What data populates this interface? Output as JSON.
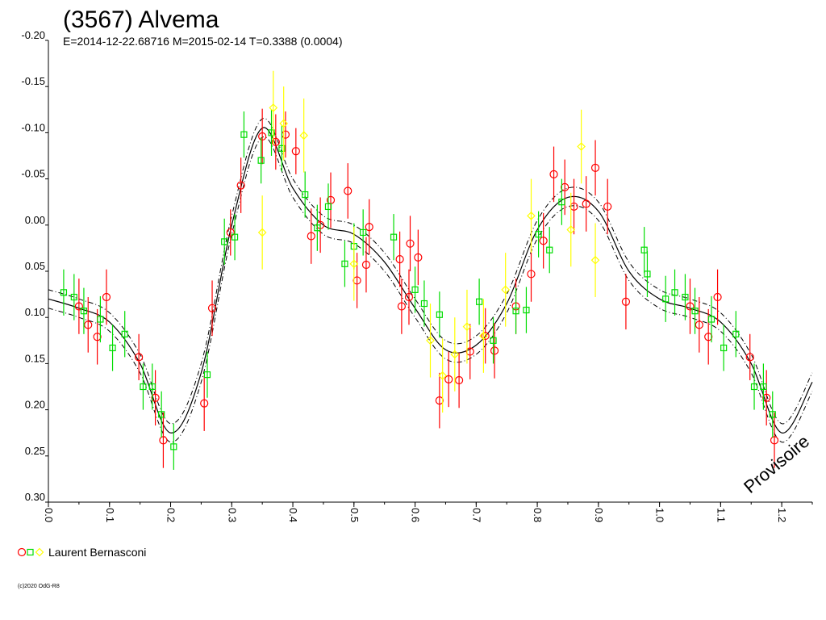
{
  "chart_data": {
    "type": "scatter",
    "title": "(3567) Alvema",
    "subtitle": "E=2014-12-22.68716    M=2015-02-14    T=0.3388 (0.0004)",
    "xlabel": "",
    "ylabel": "",
    "xlim": [
      0.0,
      1.25
    ],
    "ylim": [
      0.3,
      -0.2
    ],
    "y_inverted": true,
    "x_ticks": [
      "0.0",
      "0.1",
      "0.2",
      "0.3",
      "0.4",
      "0.5",
      "0.6",
      "0.7",
      "0.8",
      "0.9",
      "1.0",
      "1.1",
      "1.2"
    ],
    "y_ticks": [
      "-0.20",
      "-0.15",
      "-0.10",
      "-0.05",
      "0.00",
      "0.05",
      "0.10",
      "0.15",
      "0.20",
      "0.25",
      "0.30"
    ],
    "grid": false,
    "legend": {
      "placement": "bottom-left",
      "label": "Laurent Bernasconi",
      "marker_colors": [
        "#ff0000",
        "#00dd00",
        "#ffff00"
      ]
    },
    "watermark": "Provisoire",
    "copyright": "(c)2020 OdG-R8",
    "fit_curve": {
      "x": [
        0.0,
        0.05,
        0.1,
        0.15,
        0.2,
        0.25,
        0.3,
        0.35,
        0.4,
        0.45,
        0.5,
        0.55,
        0.6,
        0.65,
        0.7,
        0.75,
        0.8,
        0.85,
        0.9,
        0.95,
        1.0,
        1.05,
        1.1,
        1.15,
        1.2,
        1.25
      ],
      "y": [
        0.08,
        0.09,
        0.105,
        0.15,
        0.225,
        0.16,
        0.0,
        -0.105,
        -0.04,
        0.0,
        0.01,
        0.04,
        0.09,
        0.135,
        0.13,
        0.085,
        0.005,
        -0.03,
        -0.015,
        0.05,
        0.08,
        0.09,
        0.105,
        0.15,
        0.225,
        0.17
      ],
      "band": 0.01
    },
    "series": [
      {
        "name": "Laurent Bernasconi (red)",
        "marker": "circle",
        "color": "#ff0000",
        "points": [
          [
            0.05,
            0.088,
            0.03
          ],
          [
            0.065,
            0.108,
            0.03
          ],
          [
            0.08,
            0.121,
            0.03
          ],
          [
            0.095,
            0.078,
            0.03
          ],
          [
            0.148,
            0.143,
            0.025
          ],
          [
            0.175,
            0.187,
            0.03
          ],
          [
            0.188,
            0.233,
            0.03
          ],
          [
            0.255,
            0.193,
            0.03
          ],
          [
            0.268,
            0.09,
            0.03
          ],
          [
            0.298,
            0.008,
            0.025
          ],
          [
            0.315,
            -0.043,
            0.03
          ],
          [
            0.35,
            -0.096,
            0.03
          ],
          [
            0.372,
            -0.09,
            0.03
          ],
          [
            0.388,
            -0.098,
            0.025
          ],
          [
            0.405,
            -0.08,
            0.025
          ],
          [
            0.43,
            0.012,
            0.03
          ],
          [
            0.445,
            0.0,
            0.03
          ],
          [
            0.462,
            -0.027,
            0.03
          ],
          [
            0.49,
            -0.037,
            0.03
          ],
          [
            0.505,
            0.06,
            0.03
          ],
          [
            0.52,
            0.043,
            0.03
          ],
          [
            0.525,
            0.002,
            0.03
          ],
          [
            0.575,
            0.037,
            0.03
          ],
          [
            0.578,
            0.088,
            0.03
          ],
          [
            0.592,
            0.02,
            0.03
          ],
          [
            0.605,
            0.035,
            0.03
          ],
          [
            0.59,
            0.078,
            0.03
          ],
          [
            0.64,
            0.19,
            0.03
          ],
          [
            0.655,
            0.167,
            0.03
          ],
          [
            0.672,
            0.168,
            0.03
          ],
          [
            0.69,
            0.137,
            0.03
          ],
          [
            0.715,
            0.12,
            0.03
          ],
          [
            0.73,
            0.136,
            0.03
          ],
          [
            0.765,
            0.088,
            0.03
          ],
          [
            0.79,
            0.053,
            0.03
          ],
          [
            0.81,
            0.017,
            0.03
          ],
          [
            0.827,
            -0.055,
            0.03
          ],
          [
            0.845,
            -0.041,
            0.03
          ],
          [
            0.86,
            -0.02,
            0.03
          ],
          [
            0.88,
            -0.023,
            0.03
          ],
          [
            0.895,
            -0.062,
            0.03
          ],
          [
            0.915,
            -0.02,
            0.03
          ],
          [
            0.945,
            0.083,
            0.03
          ],
          [
            1.05,
            0.088,
            0.03
          ],
          [
            1.065,
            0.108,
            0.03
          ],
          [
            1.08,
            0.121,
            0.03
          ],
          [
            1.095,
            0.078,
            0.03
          ],
          [
            1.148,
            0.143,
            0.025
          ],
          [
            1.175,
            0.187,
            0.03
          ],
          [
            1.188,
            0.233,
            0.03
          ]
        ]
      },
      {
        "name": "Laurent Bernasconi (green)",
        "marker": "square",
        "color": "#00dd00",
        "points": [
          [
            0.025,
            0.073,
            0.025
          ],
          [
            0.042,
            0.078,
            0.025
          ],
          [
            0.058,
            0.093,
            0.025
          ],
          [
            0.085,
            0.102,
            0.025
          ],
          [
            0.105,
            0.133,
            0.025
          ],
          [
            0.125,
            0.118,
            0.025
          ],
          [
            0.155,
            0.175,
            0.025
          ],
          [
            0.17,
            0.175,
            0.025
          ],
          [
            0.185,
            0.205,
            0.025
          ],
          [
            0.205,
            0.24,
            0.025
          ],
          [
            0.26,
            0.162,
            0.025
          ],
          [
            0.288,
            0.018,
            0.025
          ],
          [
            0.305,
            0.013,
            0.025
          ],
          [
            0.32,
            -0.098,
            0.025
          ],
          [
            0.348,
            -0.07,
            0.025
          ],
          [
            0.365,
            -0.1,
            0.025
          ],
          [
            0.382,
            -0.083,
            0.025
          ],
          [
            0.42,
            -0.033,
            0.025
          ],
          [
            0.44,
            0.003,
            0.025
          ],
          [
            0.458,
            -0.02,
            0.025
          ],
          [
            0.485,
            0.042,
            0.025
          ],
          [
            0.5,
            0.023,
            0.025
          ],
          [
            0.515,
            0.008,
            0.025
          ],
          [
            0.565,
            0.013,
            0.025
          ],
          [
            0.6,
            0.07,
            0.025
          ],
          [
            0.615,
            0.085,
            0.025
          ],
          [
            0.64,
            0.097,
            0.025
          ],
          [
            0.705,
            0.083,
            0.025
          ],
          [
            0.728,
            0.125,
            0.025
          ],
          [
            0.765,
            0.093,
            0.025
          ],
          [
            0.782,
            0.092,
            0.025
          ],
          [
            0.802,
            0.01,
            0.025
          ],
          [
            0.82,
            0.027,
            0.025
          ],
          [
            0.84,
            -0.025,
            0.025
          ],
          [
            0.975,
            0.027,
            0.025
          ],
          [
            0.98,
            0.053,
            0.025
          ],
          [
            1.01,
            0.08,
            0.025
          ],
          [
            1.025,
            0.073,
            0.025
          ],
          [
            1.042,
            0.078,
            0.025
          ],
          [
            1.058,
            0.093,
            0.025
          ],
          [
            1.085,
            0.102,
            0.025
          ],
          [
            1.105,
            0.133,
            0.025
          ],
          [
            1.125,
            0.118,
            0.025
          ],
          [
            1.155,
            0.175,
            0.025
          ],
          [
            1.17,
            0.175,
            0.025
          ],
          [
            1.185,
            0.205,
            0.025
          ]
        ]
      },
      {
        "name": "Laurent Bernasconi (yellow)",
        "marker": "diamond",
        "color": "#ffff00",
        "points": [
          [
            0.35,
            0.008,
            0.04
          ],
          [
            0.368,
            -0.127,
            0.04
          ],
          [
            0.385,
            -0.11,
            0.04
          ],
          [
            0.418,
            -0.097,
            0.04
          ],
          [
            0.5,
            0.042,
            0.04
          ],
          [
            0.625,
            0.125,
            0.04
          ],
          [
            0.645,
            0.163,
            0.04
          ],
          [
            0.665,
            0.14,
            0.04
          ],
          [
            0.685,
            0.11,
            0.04
          ],
          [
            0.712,
            0.12,
            0.04
          ],
          [
            0.748,
            0.07,
            0.04
          ],
          [
            0.79,
            -0.01,
            0.04
          ],
          [
            0.855,
            0.005,
            0.04
          ],
          [
            0.872,
            -0.085,
            0.04
          ],
          [
            0.895,
            0.038,
            0.04
          ]
        ]
      }
    ]
  }
}
